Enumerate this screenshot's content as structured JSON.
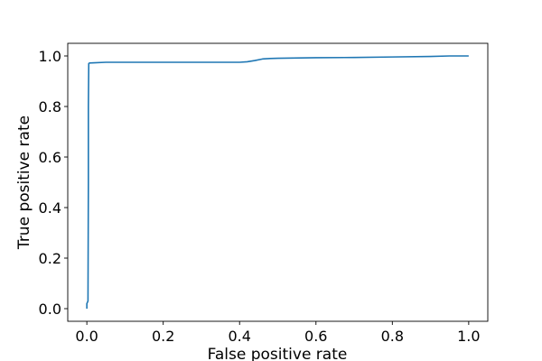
{
  "chart_data": {
    "type": "line",
    "title": "",
    "xlabel": "False positive rate",
    "ylabel": "True positive rate",
    "xlim": [
      -0.05,
      1.05
    ],
    "ylim": [
      -0.05,
      1.05
    ],
    "xticks": [
      0.0,
      0.2,
      0.4,
      0.6,
      0.8,
      1.0
    ],
    "xtick_labels": [
      "0.0",
      "0.2",
      "0.4",
      "0.6",
      "0.8",
      "1.0"
    ],
    "yticks": [
      0.0,
      0.2,
      0.4,
      0.6,
      0.8,
      1.0
    ],
    "ytick_labels": [
      "0.0",
      "0.2",
      "0.4",
      "0.6",
      "0.8",
      "1.0"
    ],
    "grid": false,
    "legend": false,
    "series": [
      {
        "color": "#1f77b4",
        "x": [
          0.0,
          0.0,
          0.003,
          0.004,
          0.004,
          0.005,
          0.007,
          0.02,
          0.05,
          0.1,
          0.2,
          0.3,
          0.4,
          0.42,
          0.44,
          0.46,
          0.48,
          0.5,
          0.6,
          0.7,
          0.8,
          0.9,
          0.95,
          1.0
        ],
        "y": [
          0.0,
          0.02,
          0.03,
          0.5,
          0.8,
          0.97,
          0.972,
          0.973,
          0.975,
          0.975,
          0.975,
          0.975,
          0.975,
          0.977,
          0.982,
          0.988,
          0.99,
          0.991,
          0.993,
          0.994,
          0.996,
          0.998,
          1.0,
          1.0
        ]
      }
    ]
  }
}
